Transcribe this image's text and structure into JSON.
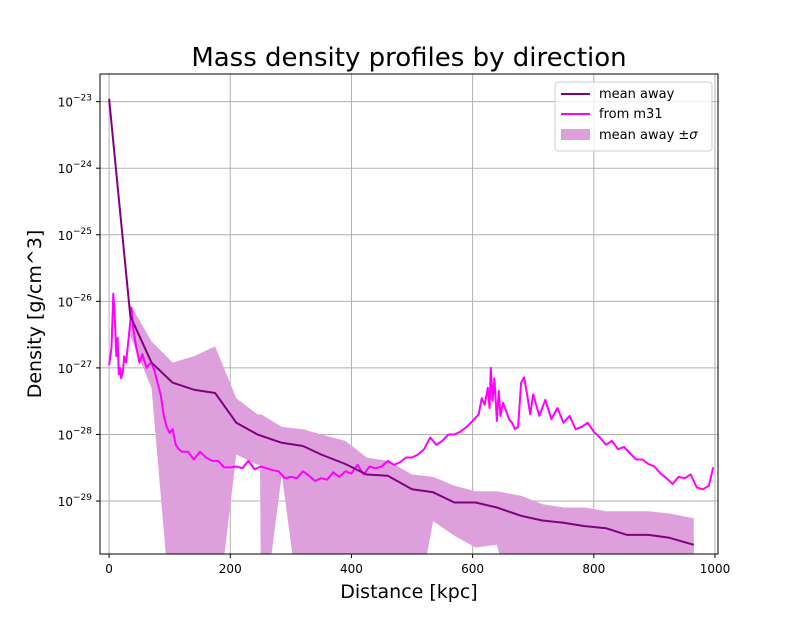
{
  "chart_data": {
    "type": "line",
    "title": "Mass density profiles by direction",
    "xlabel": "Distance [kpc]",
    "ylabel": "Density [g/cm^3]",
    "yscale": "log",
    "xlim": [
      -15,
      1005
    ],
    "ylim": [
      1.6e-30,
      2.6e-23
    ],
    "xticks": [
      0,
      200,
      400,
      600,
      800,
      1000
    ],
    "xtick_labels": [
      "0",
      "200",
      "400",
      "600",
      "800",
      "1000"
    ],
    "yticks": [
      1e-29,
      1e-28,
      1e-27,
      1e-26,
      1e-25,
      1e-24,
      1e-23
    ],
    "ytick_labels": [
      {
        "base": "10",
        "exp": "−29"
      },
      {
        "base": "10",
        "exp": "−28"
      },
      {
        "base": "10",
        "exp": "−27"
      },
      {
        "base": "10",
        "exp": "−26"
      },
      {
        "base": "10",
        "exp": "−25"
      },
      {
        "base": "10",
        "exp": "−24"
      },
      {
        "base": "10",
        "exp": "−23"
      }
    ],
    "grid": true,
    "legend_position": "top-right",
    "legend": {
      "mean_away": "mean away",
      "from_m31": "from m31",
      "band_prefix": "mean away ±",
      "band_sigma": "σ"
    },
    "series": [
      {
        "name": "mean away",
        "color": "#800080",
        "x": [
          0,
          35,
          70,
          105,
          140,
          175,
          210,
          245,
          285,
          320,
          350,
          390,
          425,
          460,
          500,
          535,
          570,
          605,
          640,
          680,
          715,
          750,
          785,
          820,
          855,
          890,
          925,
          965
        ],
        "y": [
          1.1e-23,
          6e-27,
          1.2e-27,
          6e-28,
          4.7e-28,
          4.2e-28,
          1.5e-28,
          1e-28,
          7.5e-29,
          6.7e-29,
          5e-29,
          3.6e-29,
          2.5e-29,
          2.4e-29,
          1.5e-29,
          1.35e-29,
          9.5e-30,
          9.5e-30,
          8e-30,
          6e-30,
          5.1e-30,
          4.7e-30,
          4.2e-30,
          3.9e-30,
          3.1e-30,
          3.1e-30,
          2.8e-30,
          2.2e-30
        ]
      },
      {
        "name": "from m31",
        "color": "#ff00ff",
        "x": [
          0,
          4,
          7,
          9,
          12,
          14,
          16,
          18,
          20,
          23,
          25,
          28,
          31,
          34,
          37,
          40,
          45,
          50,
          55,
          58,
          62,
          65,
          70,
          75,
          80,
          85,
          90,
          95,
          100,
          105,
          110,
          115,
          120,
          130,
          140,
          150,
          160,
          170,
          180,
          190,
          200,
          210,
          220,
          230,
          240,
          250,
          260,
          270,
          280,
          290,
          300,
          310,
          320,
          330,
          340,
          350,
          360,
          370,
          380,
          390,
          400,
          410,
          420,
          430,
          440,
          450,
          460,
          470,
          480,
          490,
          500,
          510,
          520,
          530,
          540,
          550,
          560,
          570,
          580,
          590,
          600,
          610,
          615,
          620,
          625,
          628,
          630,
          633,
          636,
          640,
          643,
          646,
          650,
          655,
          660,
          665,
          670,
          675,
          680,
          685,
          690,
          695,
          700,
          710,
          720,
          730,
          740,
          750,
          760,
          770,
          780,
          790,
          800,
          810,
          820,
          830,
          840,
          850,
          860,
          870,
          880,
          890,
          900,
          910,
          920,
          930,
          940,
          950,
          960,
          970,
          980,
          990,
          997
        ],
        "y": [
          1.1e-27,
          2e-27,
          1.3e-26,
          7e-27,
          1.5e-27,
          2.8e-27,
          8e-28,
          1e-27,
          7e-28,
          9e-28,
          1.5e-27,
          1.2e-27,
          2.2e-27,
          4e-27,
          8e-27,
          3.8e-27,
          2e-27,
          1.2e-27,
          1.6e-27,
          1.3e-27,
          1e-27,
          1.1e-27,
          1.2e-27,
          9e-28,
          6e-28,
          4e-28,
          2e-28,
          1.3e-28,
          1.05e-28,
          1.2e-28,
          7e-29,
          6e-29,
          5.5e-29,
          5.5e-29,
          4.2e-29,
          5.5e-29,
          4.5e-29,
          4e-29,
          4e-29,
          3.2e-29,
          3.2e-29,
          3.3e-29,
          3.1e-29,
          4e-29,
          3e-29,
          3.3e-29,
          3.1e-29,
          2.9e-29,
          2.8e-29,
          2.2e-29,
          2.3e-29,
          2.2e-29,
          2.8e-29,
          2.4e-29,
          2e-29,
          2.2e-29,
          2.1e-29,
          2.7e-29,
          2.3e-29,
          2.8e-29,
          2.6e-29,
          3.5e-29,
          2.5e-29,
          3.3e-29,
          3.1e-29,
          3.3e-29,
          4e-29,
          3.5e-29,
          3.8e-29,
          4.5e-29,
          4.5e-29,
          5e-29,
          6e-29,
          9e-29,
          7e-29,
          8e-29,
          1e-28,
          1e-28,
          1.1e-28,
          1.3e-28,
          1.6e-28,
          2e-28,
          3.5e-28,
          2.8e-28,
          5e-28,
          2.5e-28,
          1e-27,
          3.2e-28,
          7e-28,
          1.6e-28,
          4.5e-28,
          1.9e-28,
          3e-28,
          2.3e-28,
          1.7e-28,
          1.5e-28,
          1.2e-28,
          1.3e-28,
          6e-28,
          7.2e-28,
          4e-28,
          2e-28,
          4e-28,
          1.9e-28,
          3.3e-28,
          1.7e-28,
          2.5e-28,
          1.5e-28,
          1.9e-28,
          1.2e-28,
          1.3e-28,
          1.5e-28,
          1.1e-28,
          9e-29,
          7e-29,
          8e-29,
          6e-29,
          6.5e-29,
          5.2e-29,
          4.2e-29,
          4.2e-29,
          3.6e-29,
          3.3e-29,
          2.6e-29,
          2.2e-29,
          1.8e-29,
          2.3e-29,
          2.2e-29,
          2.5e-29,
          1.6e-29,
          1.5e-29,
          1.7e-29,
          3.2e-29
        ]
      }
    ],
    "band": {
      "name": "mean away ±σ",
      "color": "#dda0dd",
      "x": [
        35,
        70,
        105,
        140,
        175,
        210,
        245,
        249,
        251,
        285,
        320,
        350,
        390,
        425,
        460,
        500,
        535,
        570,
        605,
        640,
        680,
        715,
        750,
        785,
        820,
        855,
        890,
        925,
        965
      ],
      "upper": [
        9e-27,
        2.5e-27,
        1.2e-27,
        1.5e-27,
        2.1e-27,
        3.5e-28,
        2e-28,
        2e-28,
        2e-28,
        1.3e-28,
        1.2e-28,
        1e-28,
        8e-29,
        4.5e-29,
        4e-29,
        2.5e-29,
        2.3e-29,
        1.7e-29,
        1.4e-29,
        1.4e-29,
        1.2e-29,
        9e-30,
        8e-30,
        8e-30,
        7e-30,
        7e-30,
        7e-30,
        6.5e-30,
        5.5e-30
      ],
      "lower": [
        3e-27,
        5e-28,
        1e-31,
        1e-31,
        1e-31,
        5e-29,
        3.5e-29,
        3.5e-29,
        1e-31,
        2.5e-29,
        1e-31,
        1e-31,
        1e-31,
        1e-31,
        1e-31,
        1e-31,
        5e-30,
        3e-30,
        2e-30,
        2.2e-30,
        1e-31,
        1e-31,
        1e-31,
        1e-31,
        1e-31,
        1e-31,
        1e-31,
        1e-31,
        1e-31
      ]
    }
  }
}
